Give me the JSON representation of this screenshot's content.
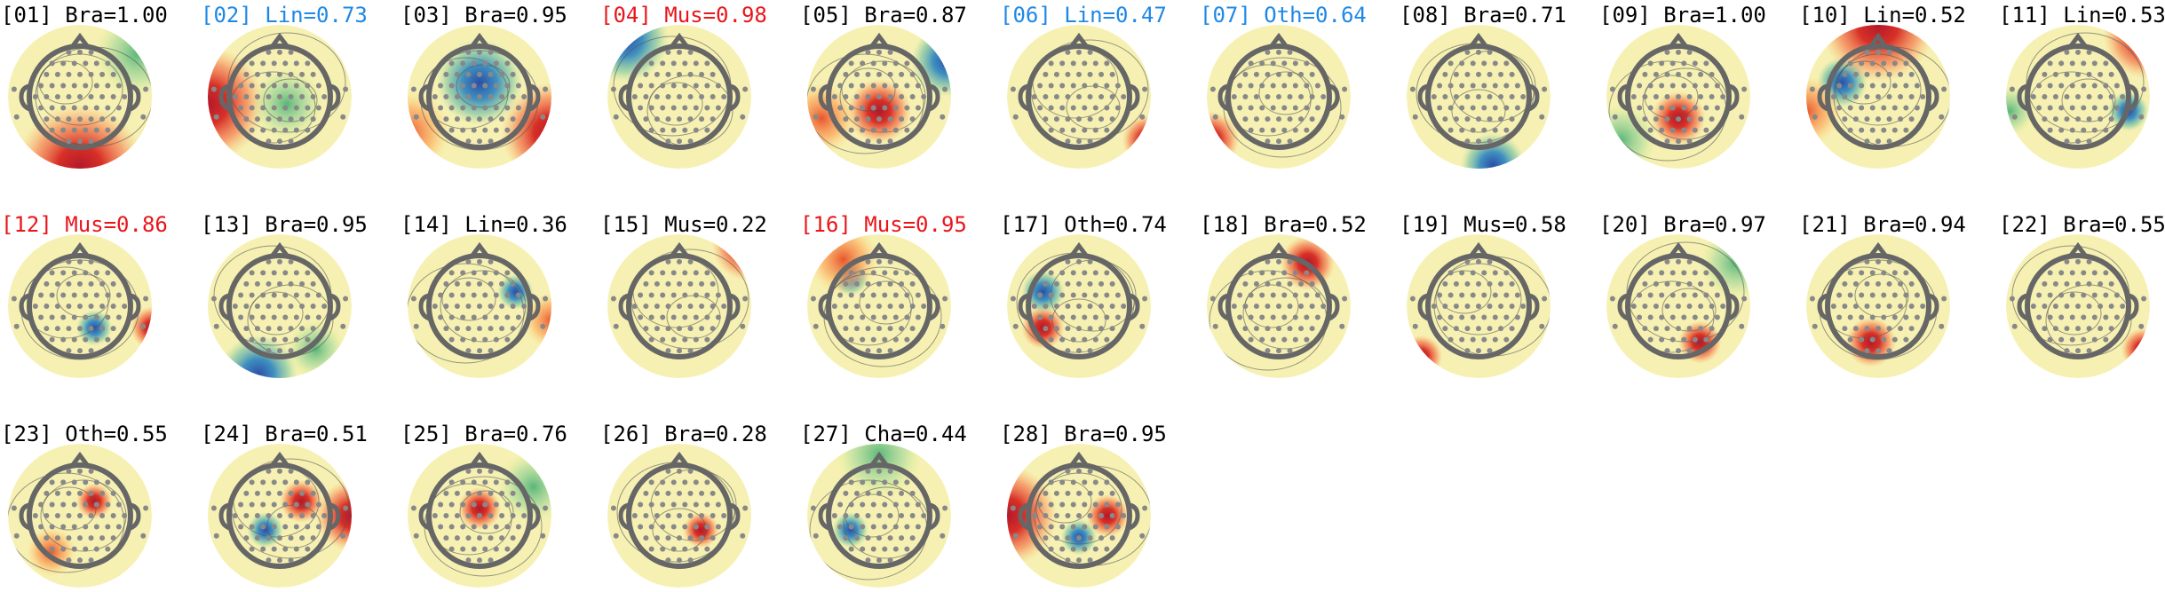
{
  "components": [
    {
      "label": "[01] Bra=1.00",
      "color": "#000000"
    },
    {
      "label": "[02] Lin=0.73",
      "color": "#1e88e5"
    },
    {
      "label": "[03] Bra=0.95",
      "color": "#000000"
    },
    {
      "label": "[04] Mus=0.98",
      "color": "#e8161b"
    },
    {
      "label": "[05] Bra=0.87",
      "color": "#000000"
    },
    {
      "label": "[06] Lin=0.47",
      "color": "#1e88e5"
    },
    {
      "label": "[07] Oth=0.64",
      "color": "#1e88e5"
    },
    {
      "label": "[08] Bra=0.71",
      "color": "#000000"
    },
    {
      "label": "[09] Bra=1.00",
      "color": "#000000"
    },
    {
      "label": "[10] Lin=0.52",
      "color": "#000000"
    },
    {
      "label": "[11] Lin=0.53",
      "color": "#000000"
    },
    {
      "label": "[12] Mus=0.86",
      "color": "#e8161b"
    },
    {
      "label": "[13] Bra=0.95",
      "color": "#000000"
    },
    {
      "label": "[14] Lin=0.36",
      "color": "#000000"
    },
    {
      "label": "[15] Mus=0.22",
      "color": "#000000"
    },
    {
      "label": "[16] Mus=0.95",
      "color": "#e8161b"
    },
    {
      "label": "[17] Oth=0.74",
      "color": "#000000"
    },
    {
      "label": "[18] Bra=0.52",
      "color": "#000000"
    },
    {
      "label": "[19] Mus=0.58",
      "color": "#000000"
    },
    {
      "label": "[20] Bra=0.97",
      "color": "#000000"
    },
    {
      "label": "[21] Bra=0.94",
      "color": "#000000"
    },
    {
      "label": "[22] Bra=0.55",
      "color": "#000000"
    },
    {
      "label": "[23] Oth=0.55",
      "color": "#000000"
    },
    {
      "label": "[24] Bra=0.51",
      "color": "#000000"
    },
    {
      "label": "[25] Bra=0.76",
      "color": "#000000"
    },
    {
      "label": "[26] Bra=0.28",
      "color": "#000000"
    },
    {
      "label": "[27] Cha=0.44",
      "color": "#000000"
    },
    {
      "label": "[28] Bra=0.95",
      "color": "#000000"
    }
  ]
}
